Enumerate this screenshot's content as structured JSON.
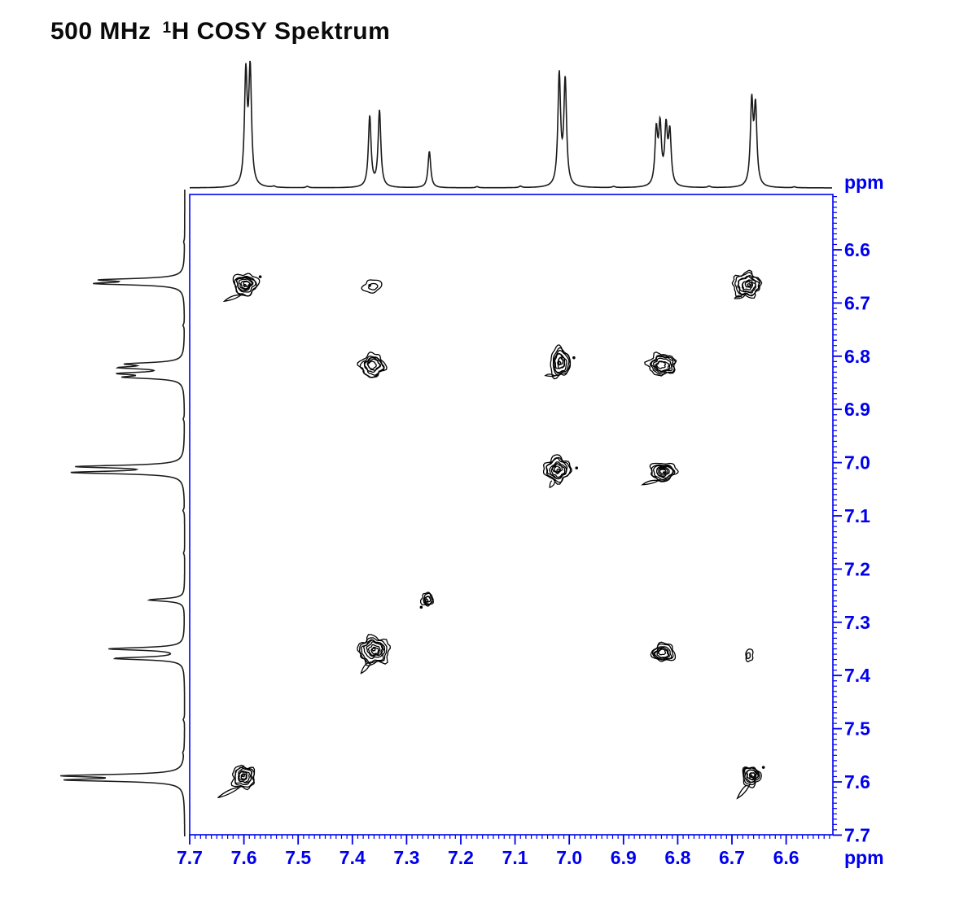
{
  "title": {
    "prefix": "500 MHz",
    "sup": "1",
    "rest": "H COSY Spektrum"
  },
  "colors": {
    "axis": "#0000EE",
    "trace": "#1a1a1a",
    "contour": "#000000",
    "background": "#ffffff"
  },
  "axes": {
    "f2": {
      "unit": "ppm",
      "orientation": "horizontal-bottom",
      "direction": "decreasing left to right",
      "range_ppm": [
        7.7,
        6.51
      ],
      "major_tick_labels": [
        "7.7",
        "7.6",
        "7.5",
        "7.4",
        "7.3",
        "7.2",
        "7.1",
        "7.0",
        "6.9",
        "6.8",
        "6.7",
        "6.6"
      ],
      "minor_tick_step_ppm": 0.01
    },
    "f1": {
      "unit": "ppm",
      "orientation": "vertical-right",
      "direction": "increasing top to bottom",
      "range_ppm": [
        6.5,
        7.7
      ],
      "major_tick_labels": [
        "6.6",
        "6.7",
        "6.8",
        "6.9",
        "7.0",
        "7.1",
        "7.2",
        "7.3",
        "7.4",
        "7.5",
        "7.6",
        "7.7"
      ],
      "minor_tick_step_ppm": 0.01
    }
  },
  "chart_data": {
    "type": "scatter",
    "subtype": "2D 1H-1H COSY NMR contour spectrum with 1D projection traces on top and left",
    "title": "500 MHz 1H COSY Spektrum",
    "xlabel": "ppm",
    "ylabel": "ppm",
    "x_range": [
      7.7,
      6.51
    ],
    "y_range": [
      6.5,
      7.7
    ],
    "projection_peaks": [
      {
        "ppm": 7.59,
        "multiplicity": "d",
        "rel_height": 1.0
      },
      {
        "ppm": 7.36,
        "multiplicity": "dd",
        "rel_height": 0.65
      },
      {
        "ppm": 7.26,
        "multiplicity": "s",
        "rel_height": 0.32
      },
      {
        "ppm": 7.01,
        "multiplicity": "d",
        "rel_height": 0.92
      },
      {
        "ppm": 6.83,
        "multiplicity": "m",
        "rel_height": 0.54
      },
      {
        "ppm": 6.66,
        "multiplicity": "d",
        "rel_height": 0.72
      }
    ],
    "projection_lines": [
      [
        7.5965,
        0.97
      ],
      [
        7.5885,
        1.0
      ],
      [
        7.368,
        0.62
      ],
      [
        7.35,
        0.67
      ],
      [
        7.258,
        0.32
      ],
      [
        7.0185,
        0.97
      ],
      [
        7.0075,
        0.92
      ],
      [
        6.8395,
        0.47
      ],
      [
        6.8325,
        0.5
      ],
      [
        6.8215,
        0.49
      ],
      [
        6.8145,
        0.45
      ],
      [
        6.6635,
        0.72
      ],
      [
        6.6565,
        0.67
      ]
    ],
    "noise_lines": [
      [
        7.545,
        0.01
      ],
      [
        7.483,
        0.012
      ],
      [
        7.17,
        0.01
      ],
      [
        7.09,
        0.013
      ],
      [
        6.918,
        0.01
      ],
      [
        6.742,
        0.012
      ],
      [
        6.585,
        0.008
      ]
    ],
    "diagonal_peaks_ppm": [
      6.67,
      6.83,
      7.02,
      7.26,
      7.36,
      7.59
    ],
    "peaks_2d": [
      {
        "f2": 7.597,
        "f1": 6.666,
        "kind": "cross",
        "intensity": "strong"
      },
      {
        "f2": 7.362,
        "f1": 6.667,
        "kind": "cross",
        "intensity": "weak"
      },
      {
        "f2": 6.671,
        "f1": 6.667,
        "kind": "diagonal",
        "intensity": "strong"
      },
      {
        "f2": 7.362,
        "f1": 6.818,
        "kind": "cross",
        "intensity": "medium"
      },
      {
        "f2": 7.017,
        "f1": 6.812,
        "kind": "cross",
        "intensity": "strong"
      },
      {
        "f2": 6.829,
        "f1": 6.817,
        "kind": "diagonal",
        "intensity": "medium"
      },
      {
        "f2": 7.021,
        "f1": 7.013,
        "kind": "diagonal",
        "intensity": "strong"
      },
      {
        "f2": 6.826,
        "f1": 7.017,
        "kind": "cross",
        "intensity": "strong"
      },
      {
        "f2": 7.261,
        "f1": 7.258,
        "kind": "diagonal",
        "intensity": "small"
      },
      {
        "f2": 7.36,
        "f1": 7.353,
        "kind": "diagonal",
        "intensity": "strong"
      },
      {
        "f2": 6.828,
        "f1": 7.357,
        "kind": "cross",
        "intensity": "medium"
      },
      {
        "f2": 6.669,
        "f1": 7.362,
        "kind": "cross",
        "intensity": "weak"
      },
      {
        "f2": 7.6,
        "f1": 7.59,
        "kind": "diagonal",
        "intensity": "strong"
      },
      {
        "f2": 6.663,
        "f1": 7.588,
        "kind": "cross",
        "intensity": "strong"
      }
    ]
  }
}
